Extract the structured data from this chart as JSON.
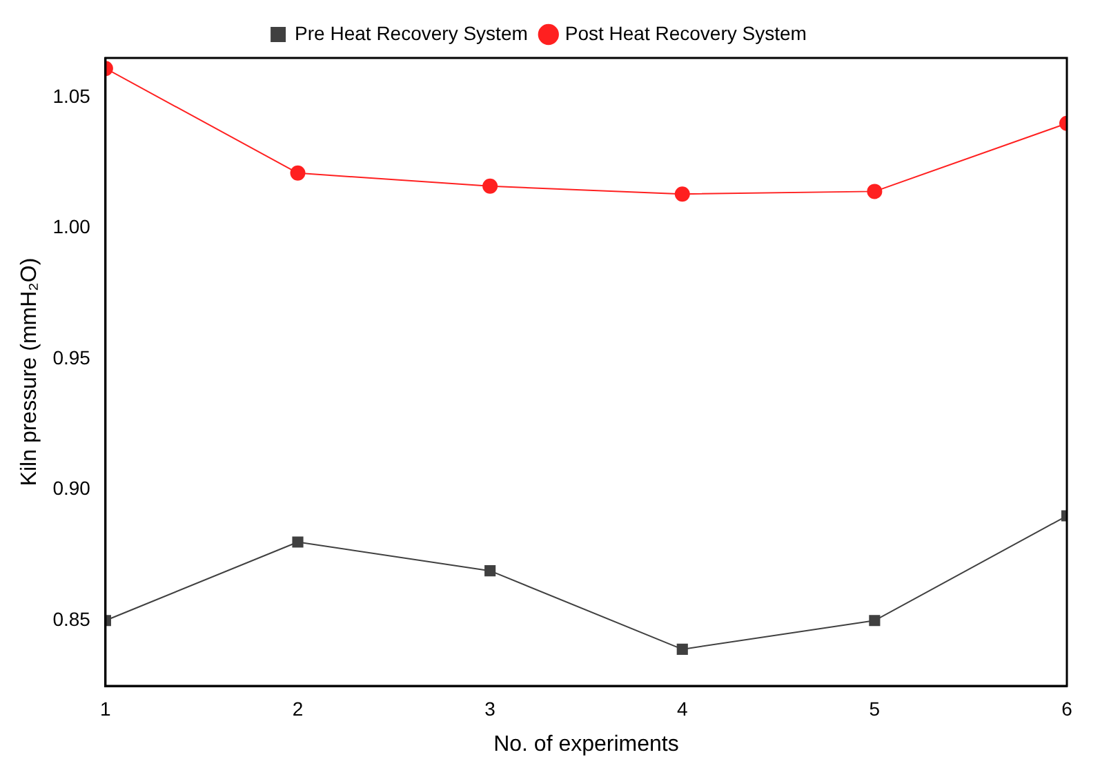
{
  "chart_data": {
    "type": "line",
    "xlabel": "No. of experiments",
    "ylabel": "Kiln pressure (mmH₂O)",
    "x": [
      1,
      2,
      3,
      4,
      5,
      6
    ],
    "xlim": [
      1,
      6
    ],
    "xticks": [
      1,
      2,
      3,
      4,
      5,
      6
    ],
    "ylim": [
      0.825,
      1.065
    ],
    "yticks": [
      {
        "value": 0.85,
        "label": "0.85"
      },
      {
        "value": 0.9,
        "label": "0.90"
      },
      {
        "value": 0.95,
        "label": "0.95"
      },
      {
        "value": 1.0,
        "label": "1.00"
      },
      {
        "value": 1.05,
        "label": "1.05"
      }
    ],
    "series": [
      {
        "name": "Pre Heat Recovery System",
        "color": "#404040",
        "marker": "square",
        "values": [
          0.85,
          0.88,
          0.869,
          0.839,
          0.85,
          0.89
        ]
      },
      {
        "name": "Post Heat Recovery System",
        "color": "#ff2020",
        "marker": "circle",
        "values": [
          1.061,
          1.021,
          1.016,
          1.013,
          1.014,
          1.04
        ]
      }
    ],
    "grid": false,
    "legend": "top",
    "line_style": "solid"
  }
}
